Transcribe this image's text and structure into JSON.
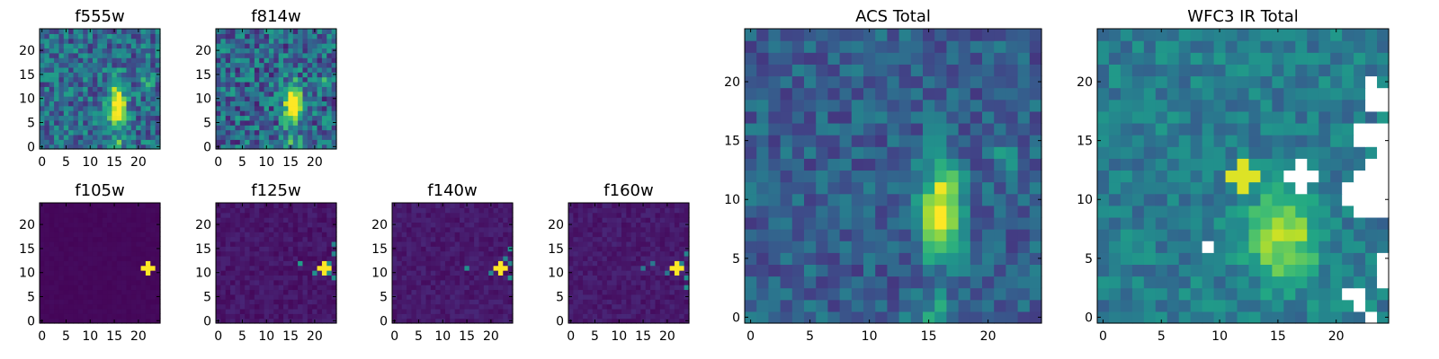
{
  "chart_data": [
    {
      "type": "heatmap",
      "title": "f555w",
      "x_ticks": [
        "0",
        "5",
        "10",
        "15",
        "20"
      ],
      "y_ticks": [
        "0",
        "5",
        "10",
        "15",
        "20"
      ],
      "xlim": [
        -0.5,
        24.5
      ],
      "ylim": [
        -0.5,
        24.5
      ],
      "grid": 25,
      "background": 0.35,
      "noise": 0.22,
      "sources": [
        {
          "x": 15.5,
          "y": 9,
          "sx": 1.2,
          "sy": 3.0,
          "amp": 0.85
        },
        {
          "x": 21.5,
          "y": 13.5,
          "sx": 0.9,
          "sy": 0.9,
          "amp": 0.35
        },
        {
          "x": 15.5,
          "y": 1,
          "sx": 1.3,
          "sy": 1.2,
          "amp": 0.3
        }
      ],
      "masked": []
    },
    {
      "type": "heatmap",
      "title": "f814w",
      "x_ticks": [
        "0",
        "5",
        "10",
        "15",
        "20"
      ],
      "y_ticks": [
        "0",
        "5",
        "10",
        "15",
        "20"
      ],
      "xlim": [
        -0.5,
        24.5
      ],
      "ylim": [
        -0.5,
        24.5
      ],
      "grid": 25,
      "background": 0.33,
      "noise": 0.25,
      "sources": [
        {
          "x": 15.5,
          "y": 8.5,
          "sx": 1.2,
          "sy": 3.0,
          "amp": 0.85
        },
        {
          "x": 21.5,
          "y": 13.5,
          "sx": 0.9,
          "sy": 0.9,
          "amp": 0.3
        },
        {
          "x": 15.5,
          "y": 1,
          "sx": 1.3,
          "sy": 1.2,
          "amp": 0.3
        }
      ],
      "masked": []
    },
    {
      "type": "heatmap",
      "title": "f105w",
      "x_ticks": [
        "0",
        "5",
        "10",
        "15",
        "20"
      ],
      "y_ticks": [
        "0",
        "5",
        "10",
        "15",
        "20"
      ],
      "xlim": [
        -0.5,
        24.5
      ],
      "ylim": [
        -0.5,
        24.5
      ],
      "grid": 25,
      "background": 0.02,
      "noise": 0.01,
      "sources": [],
      "cross": {
        "x": 22,
        "y": 11,
        "value": 1.0
      },
      "masked": []
    },
    {
      "type": "heatmap",
      "title": "f125w",
      "x_ticks": [
        "0",
        "5",
        "10",
        "15",
        "20"
      ],
      "y_ticks": [
        "0",
        "5",
        "10",
        "15",
        "20"
      ],
      "xlim": [
        -0.5,
        24.5
      ],
      "ylim": [
        -0.5,
        24.5
      ],
      "grid": 25,
      "background": 0.06,
      "noise": 0.04,
      "sources": [],
      "cross": {
        "x": 22,
        "y": 11,
        "value": 1.0
      },
      "speckles": [
        [
          23,
          10,
          0.5
        ],
        [
          24,
          9,
          0.5
        ],
        [
          24,
          14,
          0.45
        ],
        [
          24,
          16,
          0.45
        ],
        [
          20,
          10,
          0.5
        ],
        [
          17,
          12,
          0.55
        ],
        [
          23,
          12,
          0.5
        ]
      ],
      "masked": []
    },
    {
      "type": "heatmap",
      "title": "f140w",
      "x_ticks": [
        "0",
        "5",
        "10",
        "15",
        "20"
      ],
      "y_ticks": [
        "0",
        "5",
        "10",
        "15",
        "20"
      ],
      "xlim": [
        -0.5,
        24.5
      ],
      "ylim": [
        -0.5,
        24.5
      ],
      "grid": 25,
      "background": 0.07,
      "noise": 0.04,
      "sources": [],
      "cross": {
        "x": 22,
        "y": 11,
        "value": 1.0
      },
      "speckles": [
        [
          15,
          11,
          0.5
        ],
        [
          24,
          9,
          0.5
        ],
        [
          24,
          12,
          0.45
        ],
        [
          24,
          15,
          0.5
        ],
        [
          23,
          13,
          0.45
        ],
        [
          20,
          10,
          0.45
        ]
      ],
      "masked": []
    },
    {
      "type": "heatmap",
      "title": "f160w",
      "x_ticks": [
        "0",
        "5",
        "10",
        "15",
        "20"
      ],
      "y_ticks": [
        "0",
        "5",
        "10",
        "15",
        "20"
      ],
      "xlim": [
        -0.5,
        24.5
      ],
      "ylim": [
        -0.5,
        24.5
      ],
      "grid": 25,
      "background": 0.07,
      "noise": 0.04,
      "sources": [],
      "cross": {
        "x": 22,
        "y": 11,
        "value": 1.0
      },
      "speckles": [
        [
          15,
          11,
          0.4
        ],
        [
          17,
          12,
          0.4
        ],
        [
          24,
          7,
          0.5
        ],
        [
          24,
          9,
          0.5
        ],
        [
          24,
          14,
          0.45
        ],
        [
          23,
          12,
          0.45
        ],
        [
          20,
          10,
          0.4
        ]
      ],
      "masked": []
    },
    {
      "type": "heatmap",
      "title": "ACS Total",
      "x_ticks": [
        "0",
        "5",
        "10",
        "15",
        "20"
      ],
      "y_ticks": [
        "0",
        "5",
        "10",
        "15",
        "20"
      ],
      "xlim": [
        -0.5,
        24.5
      ],
      "ylim": [
        -0.5,
        24.5
      ],
      "grid": 25,
      "background": 0.3,
      "noise": 0.14,
      "sources": [
        {
          "x": 16,
          "y": 9,
          "sx": 1.2,
          "sy": 2.8,
          "amp": 0.75
        },
        {
          "x": 21.5,
          "y": 13.5,
          "sx": 0.7,
          "sy": 0.7,
          "amp": 0.35
        },
        {
          "x": 15.5,
          "y": 0.5,
          "sx": 1.3,
          "sy": 1.0,
          "amp": 0.25
        }
      ],
      "masked": []
    },
    {
      "type": "heatmap",
      "title": "WFC3 IR Total",
      "x_ticks": [
        "0",
        "5",
        "10",
        "15",
        "20"
      ],
      "y_ticks": [
        "0",
        "5",
        "10",
        "15",
        "20"
      ],
      "xlim": [
        -0.5,
        24.5
      ],
      "ylim": [
        -0.5,
        24.5
      ],
      "grid": 25,
      "background": 0.42,
      "noise": 0.12,
      "sources": [
        {
          "x": 15.5,
          "y": 7,
          "sx": 2.0,
          "sy": 2.6,
          "amp": 0.5
        },
        {
          "x": 12,
          "y": 12,
          "sx": 0.6,
          "sy": 0.6,
          "amp": 0.25
        }
      ],
      "cross": {
        "x": 12,
        "y": 12,
        "value": 0.95
      },
      "masked": [
        [
          23,
          20
        ],
        [
          23,
          19
        ],
        [
          24,
          19
        ],
        [
          23,
          18
        ],
        [
          24,
          18
        ],
        [
          22,
          16
        ],
        [
          23,
          16
        ],
        [
          24,
          16
        ],
        [
          22,
          15
        ],
        [
          23,
          15
        ],
        [
          24,
          15
        ],
        [
          24,
          14
        ],
        [
          23,
          13
        ],
        [
          24,
          13
        ],
        [
          22,
          12
        ],
        [
          23,
          12
        ],
        [
          24,
          12
        ],
        [
          17,
          13
        ],
        [
          16,
          12
        ],
        [
          17,
          12
        ],
        [
          18,
          12
        ],
        [
          17,
          11
        ],
        [
          21,
          11
        ],
        [
          22,
          11
        ],
        [
          23,
          11
        ],
        [
          24,
          11
        ],
        [
          21,
          10
        ],
        [
          22,
          10
        ],
        [
          23,
          10
        ],
        [
          24,
          10
        ],
        [
          22,
          9
        ],
        [
          23,
          9
        ],
        [
          24,
          9
        ],
        [
          9,
          6
        ],
        [
          24,
          5
        ],
        [
          24,
          4
        ],
        [
          24,
          3
        ],
        [
          21,
          2
        ],
        [
          22,
          2
        ],
        [
          22,
          1
        ],
        [
          23,
          0
        ]
      ]
    }
  ]
}
